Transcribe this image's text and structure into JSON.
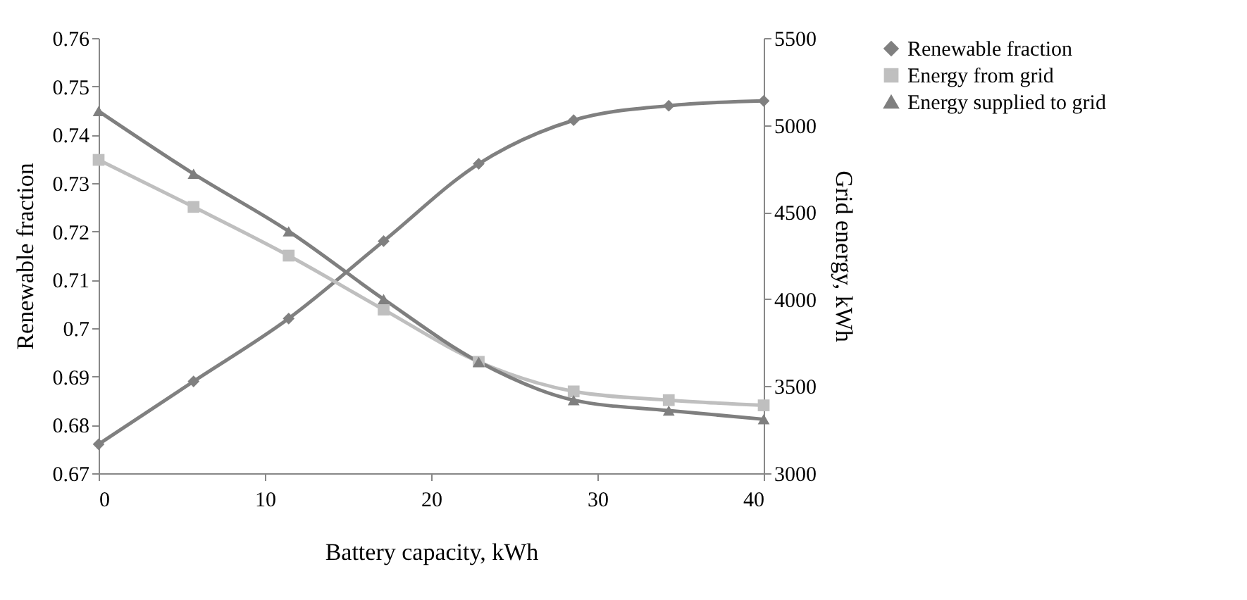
{
  "chart_data": {
    "type": "line",
    "xlabel": "Battery capacity, kWh",
    "ylabel": "Renewable fraction",
    "y2label": "Grid energy, kWh",
    "x": [
      0,
      5.71,
      11.43,
      17.14,
      22.86,
      28.57,
      34.29,
      40
    ],
    "xlim": [
      0,
      40
    ],
    "xticks": [
      0,
      10,
      20,
      30,
      40
    ],
    "ylim": [
      0.67,
      0.76
    ],
    "yticks": [
      0.67,
      0.68,
      0.69,
      0.7,
      0.71,
      0.72,
      0.73,
      0.74,
      0.75,
      0.76
    ],
    "y2lim": [
      3000,
      5500
    ],
    "y2ticks": [
      3000,
      3500,
      4000,
      4500,
      5000,
      5500
    ],
    "series": [
      {
        "name": "Renewable fraction",
        "color": "#808080",
        "marker": "diamond",
        "values": [
          0.676,
          0.689,
          0.702,
          0.718,
          0.734,
          0.743,
          0.746,
          0.747
        ]
      },
      {
        "name": "Energy from grid",
        "color": "#bfbfbf",
        "marker": "square",
        "axis": "y2",
        "values": [
          4800,
          4530,
          4250,
          3940,
          3640,
          3470,
          3420,
          3390
        ]
      },
      {
        "name": "Energy supplied to grid",
        "color": "#7f7f7f",
        "marker": "triangle",
        "axis": "y2",
        "values": [
          5080,
          4720,
          4390,
          4000,
          3640,
          3420,
          3360,
          3310
        ]
      }
    ],
    "legend": "right",
    "grid": false
  }
}
